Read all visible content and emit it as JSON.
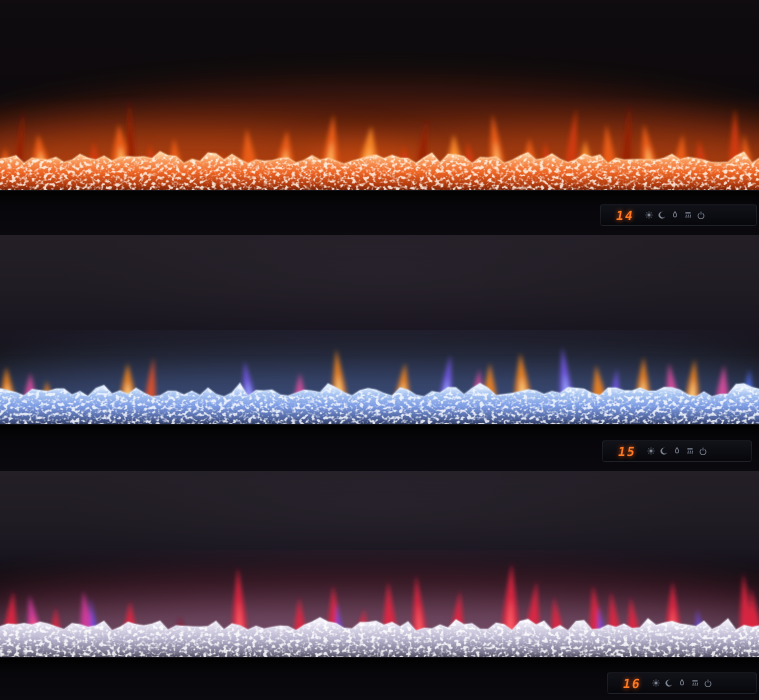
{
  "scene_title": "Three electric fireplace flame modes",
  "display": {
    "digit_color": "#ff7a22",
    "icon_color": "#99a2b2",
    "icons": [
      "flame-color",
      "timer",
      "flame-effect",
      "heater",
      "power"
    ]
  },
  "units": [
    {
      "label": "orange-flame-fireplace",
      "temp": "14",
      "palette": {
        "body": "#d63a0e",
        "mid": "#f2601a",
        "bright": "#ff8c28",
        "core": "#ffbb60",
        "wisp": "#971c06"
      },
      "bed": {
        "stops": [
          "#ffd2a2",
          "#f89a5c",
          "#ee6524",
          "#b13a0e",
          "#401006"
        ],
        "speckle": "#ffeed8",
        "rim": "#ffddb0",
        "glow": "#ff6a18",
        "haze": "#d23c0a",
        "haze_opacity": 0.32
      },
      "flames": [
        [
          5,
          22,
          10,
          "mid"
        ],
        [
          18,
          60,
          7,
          "wisp"
        ],
        [
          42,
          36,
          16,
          "mid",
          "core"
        ],
        [
          95,
          28,
          11,
          "body"
        ],
        [
          122,
          46,
          18,
          "mid",
          "core"
        ],
        [
          131,
          70,
          8,
          "wisp"
        ],
        [
          152,
          26,
          10,
          "body"
        ],
        [
          176,
          32,
          11,
          "mid"
        ],
        [
          222,
          18,
          9,
          "body"
        ],
        [
          250,
          42,
          13,
          "mid"
        ],
        [
          285,
          40,
          15,
          "mid",
          "core"
        ],
        [
          330,
          56,
          14,
          "mid",
          "core"
        ],
        [
          368,
          44,
          16,
          "bright",
          "core"
        ],
        [
          405,
          24,
          10,
          "body"
        ],
        [
          421,
          52,
          8,
          "wisp"
        ],
        [
          455,
          36,
          14,
          "bright",
          "core"
        ],
        [
          471,
          28,
          10,
          "body"
        ],
        [
          498,
          56,
          13,
          "mid",
          "core"
        ],
        [
          530,
          32,
          13,
          "mid"
        ],
        [
          548,
          28,
          10,
          "body"
        ],
        [
          570,
          62,
          10,
          "body"
        ],
        [
          586,
          30,
          12,
          "bright",
          "core"
        ],
        [
          610,
          46,
          12,
          "mid"
        ],
        [
          626,
          66,
          8,
          "wisp"
        ],
        [
          650,
          46,
          14,
          "mid",
          "core"
        ],
        [
          680,
          36,
          12,
          "mid"
        ],
        [
          702,
          30,
          11,
          "body"
        ],
        [
          735,
          62,
          11,
          "body"
        ],
        [
          748,
          36,
          10,
          "mid"
        ]
      ]
    },
    {
      "label": "multicolor-flame-fireplace",
      "temp": "15",
      "palette": {
        "orange": "#f28420",
        "core": "#ffd685",
        "magenta": "#df4d9e",
        "violet": "#7258e8",
        "vcore": "#9fb0ff",
        "blue": "#4a66e0",
        "red": "#e8512a"
      },
      "bed": {
        "stops": [
          "#e2ecfc",
          "#aac6f2",
          "#7e9de4",
          "#4f639c",
          "#171e38"
        ],
        "speckle": "#f2f7ff",
        "rim": "#dce9fc",
        "glow": "#5d7fd8",
        "haze": "#50648c",
        "haze_opacity": 0.22
      },
      "flames": [
        [
          8,
          36,
          13,
          "orange",
          "core"
        ],
        [
          30,
          30,
          11,
          "magenta"
        ],
        [
          48,
          22,
          9,
          "orange"
        ],
        [
          128,
          40,
          14,
          "orange",
          "core"
        ],
        [
          150,
          46,
          9,
          "red"
        ],
        [
          250,
          42,
          11,
          "violet",
          "vcore"
        ],
        [
          300,
          30,
          10,
          "magenta"
        ],
        [
          340,
          54,
          13,
          "orange",
          "core"
        ],
        [
          402,
          40,
          13,
          "orange",
          "core"
        ],
        [
          445,
          48,
          11,
          "violet",
          "vcore"
        ],
        [
          477,
          34,
          10,
          "magenta"
        ],
        [
          490,
          40,
          12,
          "orange"
        ],
        [
          523,
          50,
          15,
          "orange",
          "core"
        ],
        [
          567,
          56,
          12,
          "violet",
          "vcore"
        ],
        [
          600,
          38,
          12,
          "orange"
        ],
        [
          615,
          34,
          9,
          "violet"
        ],
        [
          643,
          46,
          13,
          "orange",
          "core"
        ],
        [
          673,
          40,
          11,
          "magenta"
        ],
        [
          692,
          44,
          12,
          "orange",
          "core"
        ],
        [
          722,
          38,
          11,
          "magenta"
        ],
        [
          748,
          34,
          10,
          "blue"
        ]
      ]
    },
    {
      "label": "red-purple-flame-fireplace",
      "temp": "16",
      "palette": {
        "red": "#e42440",
        "bright": "#ff5d68",
        "magenta": "#d83aa2",
        "violet": "#6c4ae4",
        "wisp": "#8e1430"
      },
      "bed": {
        "stops": [
          "#f4f2fa",
          "#dcd8ea",
          "#b7b2cc",
          "#7e7a94",
          "#2b2938"
        ],
        "speckle": "#ffffff",
        "rim": "#efecf8",
        "glow": "#b2a6d2",
        "haze": "#be3c64",
        "haze_opacity": 0.18
      },
      "flames": [
        [
          10,
          46,
          12,
          "red"
        ],
        [
          35,
          42,
          12,
          "magenta",
          "bright"
        ],
        [
          56,
          30,
          8,
          "red"
        ],
        [
          88,
          46,
          12,
          "magenta"
        ],
        [
          95,
          40,
          6,
          "violet"
        ],
        [
          130,
          36,
          11,
          "red"
        ],
        [
          182,
          20,
          8,
          "wisp"
        ],
        [
          240,
          70,
          13,
          "red",
          "bright"
        ],
        [
          300,
          40,
          10,
          "red"
        ],
        [
          335,
          52,
          12,
          "red"
        ],
        [
          340,
          34,
          6,
          "violet"
        ],
        [
          362,
          28,
          9,
          "red"
        ],
        [
          390,
          56,
          12,
          "red"
        ],
        [
          420,
          62,
          12,
          "red",
          "bright"
        ],
        [
          457,
          46,
          11,
          "red"
        ],
        [
          510,
          74,
          15,
          "red",
          "bright"
        ],
        [
          532,
          56,
          12,
          "red"
        ],
        [
          558,
          40,
          10,
          "red"
        ],
        [
          597,
          52,
          12,
          "red"
        ],
        [
          602,
          30,
          6,
          "violet"
        ],
        [
          615,
          46,
          10,
          "red"
        ],
        [
          634,
          40,
          10,
          "red"
        ],
        [
          673,
          56,
          13,
          "red",
          "bright"
        ],
        [
          700,
          28,
          7,
          "violet"
        ],
        [
          747,
          64,
          12,
          "red"
        ],
        [
          757,
          50,
          10,
          "red"
        ]
      ]
    }
  ]
}
